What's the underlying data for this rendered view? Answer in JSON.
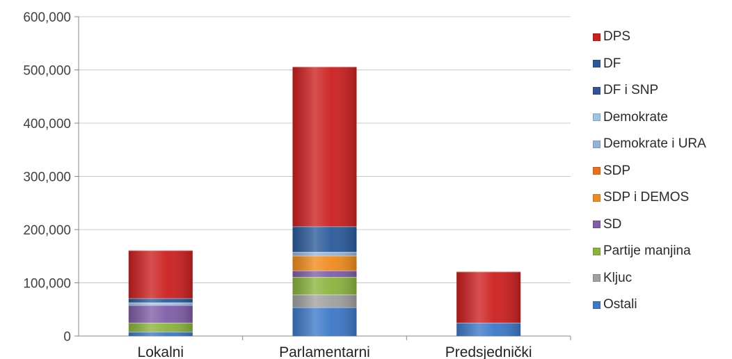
{
  "chart_data": {
    "type": "bar",
    "stacked": true,
    "categories": [
      "Lokalni",
      "Parlamentarni",
      "Predsjednički"
    ],
    "ylim": [
      0,
      600000
    ],
    "yticks": [
      "0",
      "100,000",
      "200,000",
      "300,000",
      "400,000",
      "500,000",
      "600,000"
    ],
    "ytick_values": [
      0,
      100000,
      200000,
      300000,
      400000,
      500000,
      600000
    ],
    "grid": true,
    "legend_position": "right",
    "series": [
      {
        "name": "Ostali",
        "color": "#3c78c8",
        "values": [
          8000,
          54000,
          25000
        ]
      },
      {
        "name": "Kljuc",
        "color": "#a0a0a0",
        "values": [
          0,
          24000,
          0
        ]
      },
      {
        "name": "Partije manjina",
        "color": "#8ab33c",
        "values": [
          17000,
          33000,
          0
        ]
      },
      {
        "name": "SD",
        "color": "#7f5da8",
        "values": [
          33000,
          12000,
          0
        ]
      },
      {
        "name": "SDP i DEMOS",
        "color": "#f08a1c",
        "values": [
          0,
          28000,
          0
        ]
      },
      {
        "name": "SDP",
        "color": "#e8701a",
        "values": [
          0,
          0,
          0
        ]
      },
      {
        "name": "Demokrate i URA",
        "color": "#93b3db",
        "values": [
          0,
          7000,
          0
        ]
      },
      {
        "name": "Demokrate",
        "color": "#9dc3e6",
        "values": [
          5000,
          0,
          0
        ]
      },
      {
        "name": "DF i SNP",
        "color": "#2f5597",
        "values": [
          0,
          0,
          0
        ]
      },
      {
        "name": "DF",
        "color": "#2a5a9a",
        "values": [
          8000,
          48000,
          0
        ]
      },
      {
        "name": "DPS",
        "color": "#cc1f1f",
        "values": [
          90000,
          300000,
          96000
        ]
      }
    ],
    "legend_order": [
      "DPS",
      "DF",
      "DF i SNP",
      "Demokrate",
      "Demokrate i URA",
      "SDP",
      "SDP i DEMOS",
      "SD",
      "Partije manjina",
      "Kljuc",
      "Ostali"
    ]
  }
}
